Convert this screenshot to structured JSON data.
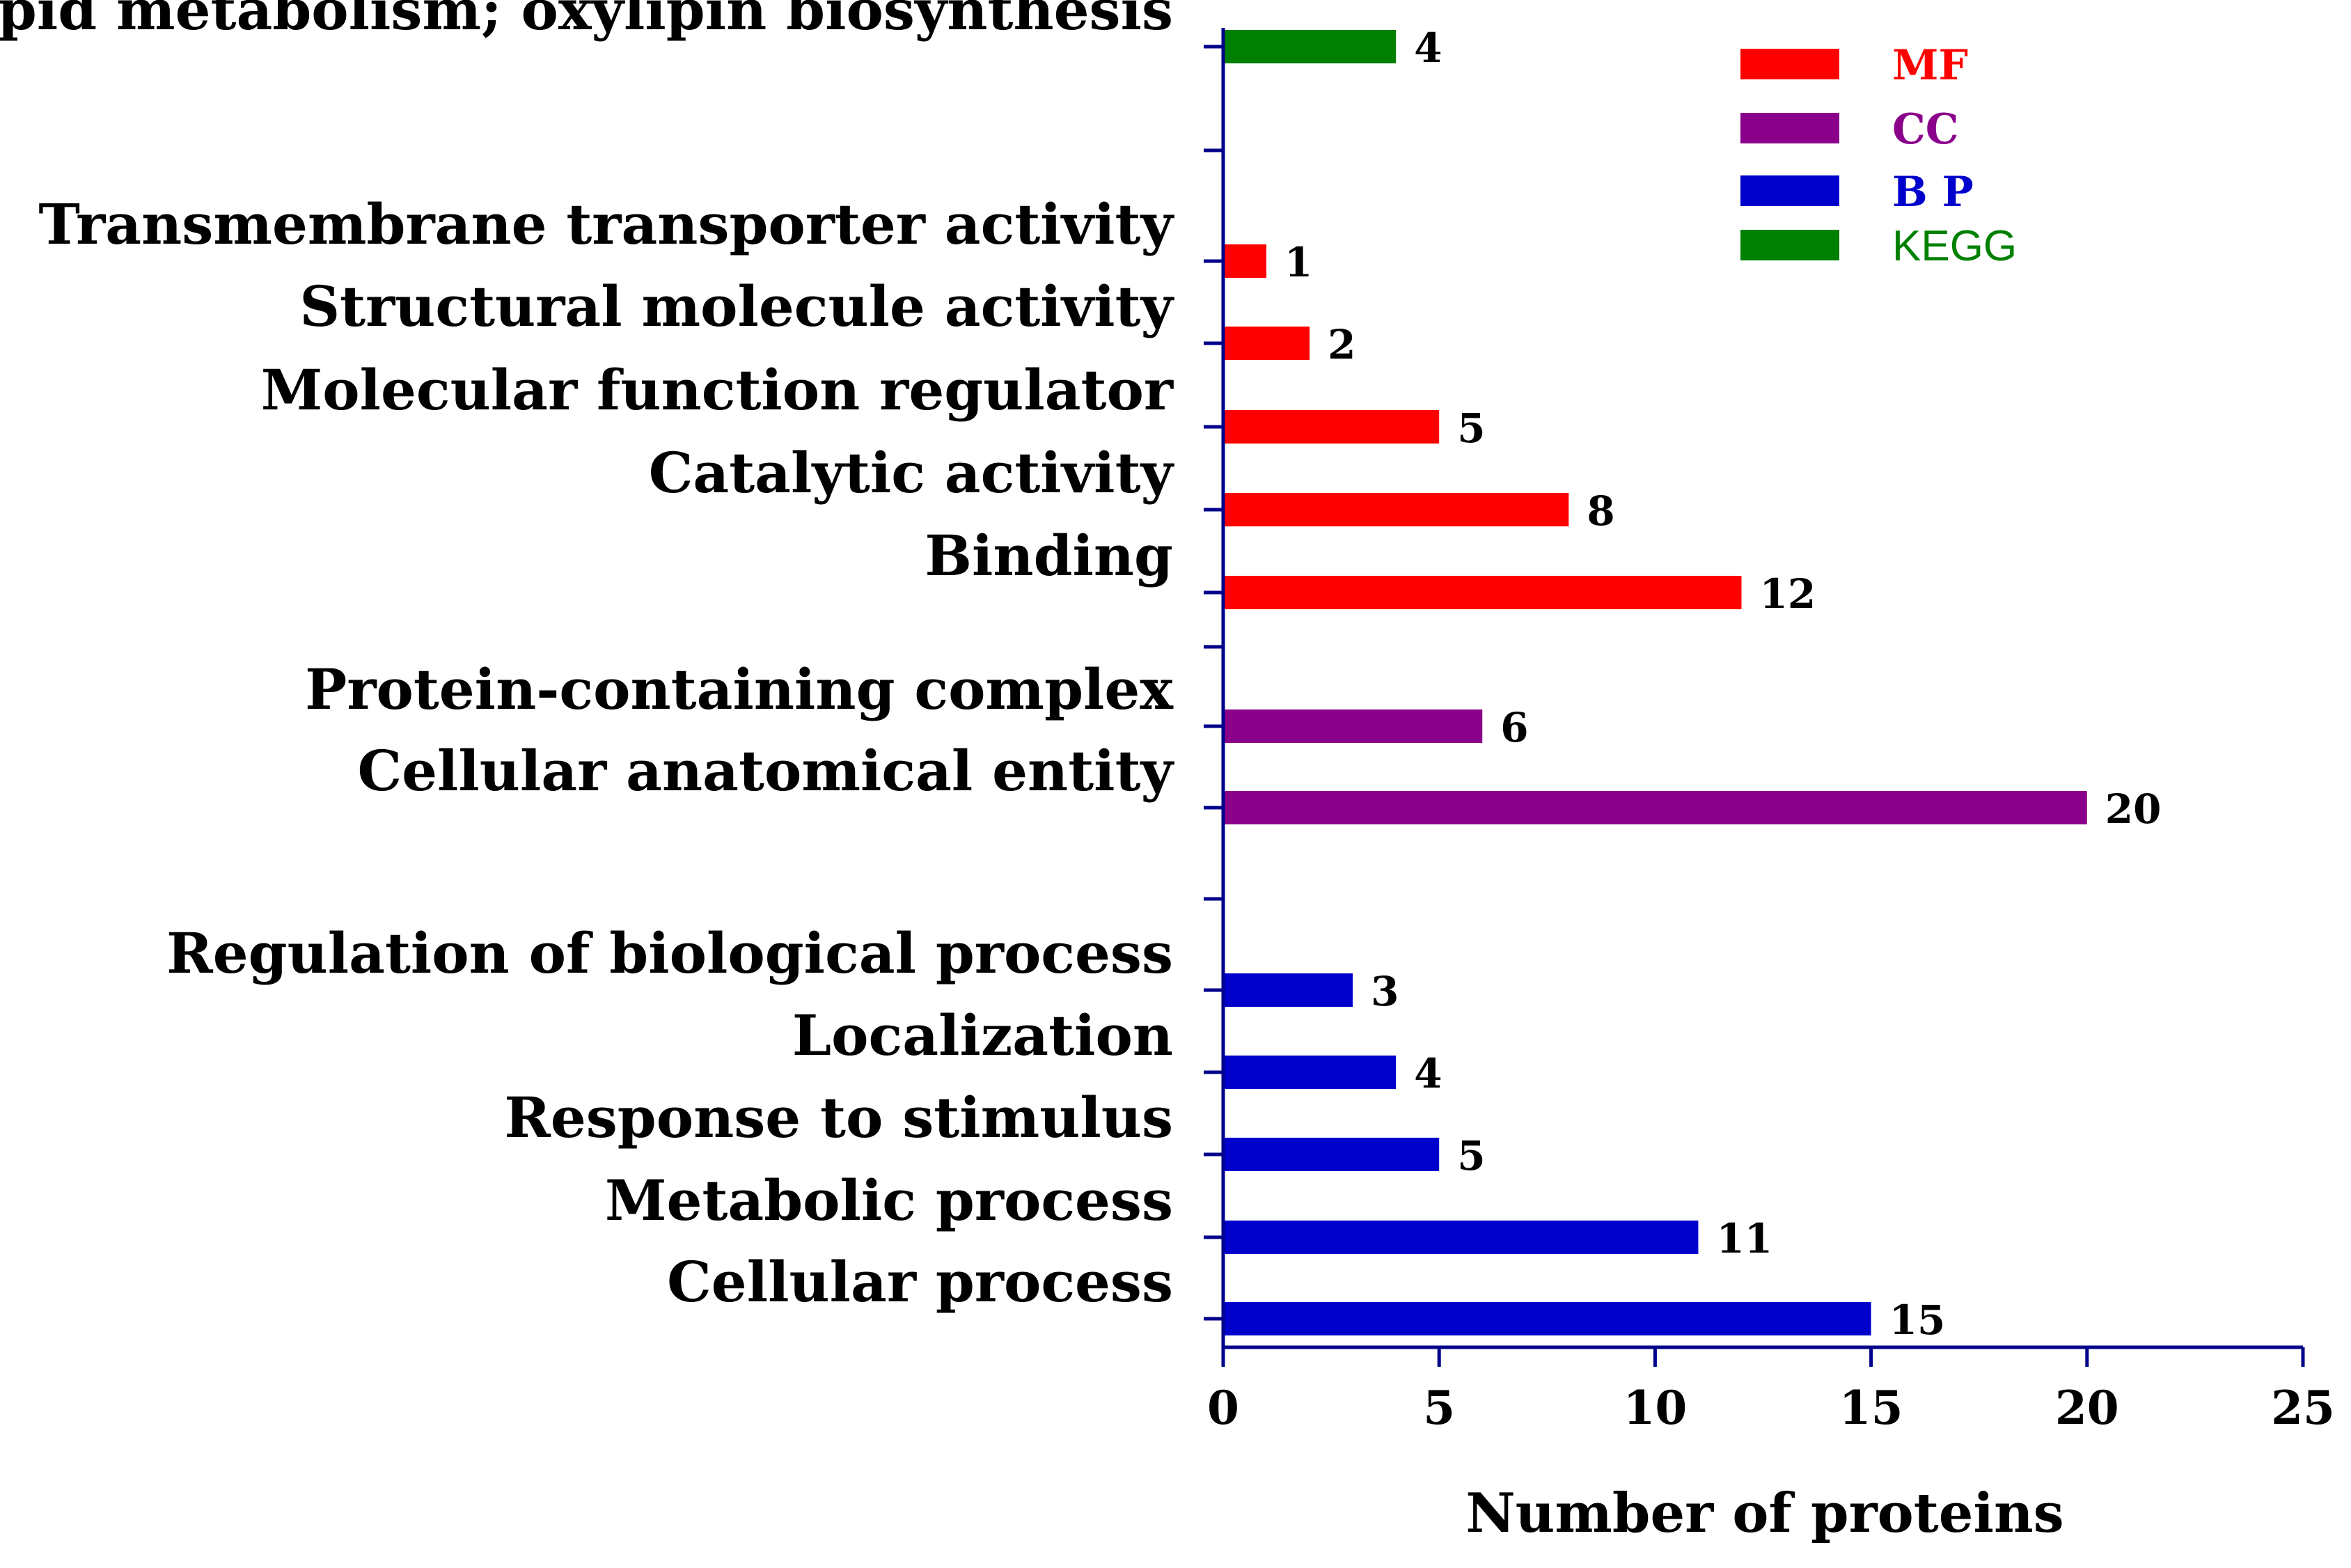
{
  "chart_data": {
    "type": "bar",
    "orientation": "horizontal",
    "title": "",
    "xlabel": "Number of proteins",
    "ylabel": "",
    "xlim": [
      0,
      25
    ],
    "xticks": [
      0,
      5,
      10,
      15,
      20,
      25
    ],
    "legend_position": "top-right",
    "groups": [
      {
        "key": "MF",
        "label": "MF",
        "color": "#ff0000"
      },
      {
        "key": "CC",
        "label": "CC",
        "color": "#8b008b"
      },
      {
        "key": "BP",
        "label": "B P",
        "color": "#0000cd"
      },
      {
        "key": "KEGG",
        "label": "KEGG",
        "color": "#008000"
      }
    ],
    "categories": [
      {
        "label": "Lipid metabolism; oxylipin biosynthesis",
        "value": 4,
        "group": "KEGG"
      },
      {
        "label": "Transmembrane transporter activity",
        "value": 1,
        "group": "MF"
      },
      {
        "label": "Structural molecule activity",
        "value": 2,
        "group": "MF"
      },
      {
        "label": "Molecular function regulator",
        "value": 5,
        "group": "MF"
      },
      {
        "label": "Catalytic activity",
        "value": 8,
        "group": "MF"
      },
      {
        "label": "Binding",
        "value": 12,
        "group": "MF"
      },
      {
        "label": "Protein-containing complex",
        "value": 6,
        "group": "CC"
      },
      {
        "label": "Cellular anatomical entity",
        "value": 20,
        "group": "CC"
      },
      {
        "label": "Regulation of biological process",
        "value": 3,
        "group": "BP"
      },
      {
        "label": "Localization",
        "value": 4,
        "group": "BP"
      },
      {
        "label": "Response to stimulus",
        "value": 5,
        "group": "BP"
      },
      {
        "label": "Metabolic process",
        "value": 11,
        "group": "BP"
      },
      {
        "label": "Cellular process",
        "value": 15,
        "group": "BP"
      }
    ]
  }
}
